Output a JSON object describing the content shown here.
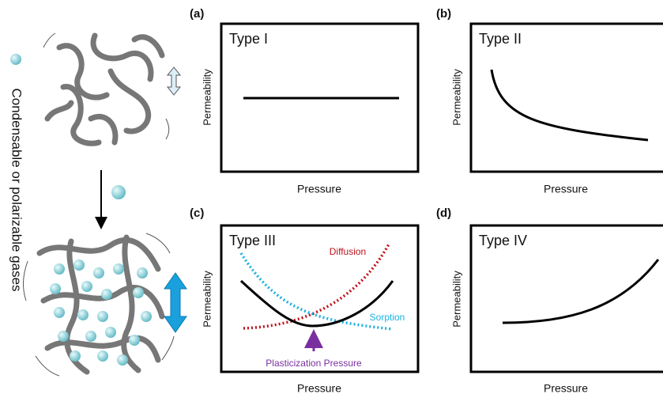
{
  "side_label": "Condensable or polarizable gases",
  "panels": [
    {
      "label": "(a)",
      "title": "Type I",
      "x_label": "Pressure",
      "y_label": "Permeability"
    },
    {
      "label": "(b)",
      "title": "Type II",
      "x_label": "Pressure",
      "y_label": "Permeability"
    },
    {
      "label": "(c)",
      "title": "Type III",
      "x_label": "Pressure",
      "y_label": "Permeability",
      "annotations": [
        "Diffusion",
        "Sorption",
        "Plasticization Pressure"
      ]
    },
    {
      "label": "(d)",
      "title": "Type IV",
      "x_label": "Pressure",
      "y_label": "Permeability"
    }
  ]
}
